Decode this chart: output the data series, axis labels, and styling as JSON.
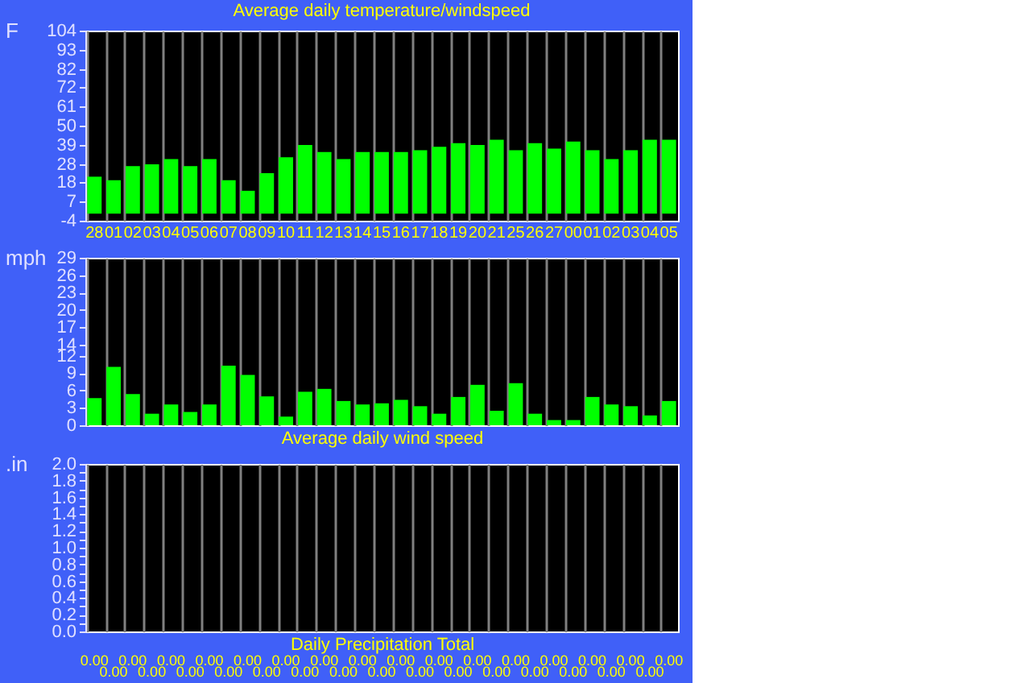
{
  "chart_data": [
    {
      "type": "bar",
      "title": "Average daily temperature/windspeed",
      "ylabel": "F",
      "categories": [
        "28",
        "01",
        "02",
        "03",
        "04",
        "05",
        "06",
        "07",
        "08",
        "09",
        "10",
        "11",
        "12",
        "13",
        "14",
        "15",
        "16",
        "17",
        "18",
        "19",
        "20",
        "21",
        "25",
        "26",
        "27",
        "00",
        "01",
        "02",
        "03",
        "04",
        "05"
      ],
      "series": [
        {
          "color": "#00ff00",
          "values": [
            21,
            19,
            27,
            28,
            31,
            27,
            31,
            19,
            13,
            23,
            32,
            39,
            35,
            31,
            35,
            35,
            35,
            36,
            38,
            40,
            39,
            42,
            36,
            40,
            37,
            41,
            36,
            31,
            36,
            42,
            42
          ]
        }
      ],
      "ylim": [
        -4,
        104
      ],
      "yticks": [
        -4,
        7,
        18,
        28,
        39,
        50,
        61,
        72,
        82,
        93,
        104
      ],
      "grid": "x",
      "legend": false
    },
    {
      "type": "bar",
      "xlabel": "Average daily wind speed",
      "ylabel": "mph",
      "categories": [
        "28",
        "01",
        "02",
        "03",
        "04",
        "05",
        "06",
        "07",
        "08",
        "09",
        "10",
        "11",
        "12",
        "13",
        "14",
        "15",
        "16",
        "17",
        "18",
        "19",
        "20",
        "21",
        "25",
        "26",
        "27",
        "00",
        "01",
        "02",
        "03",
        "04",
        "05"
      ],
      "series": [
        {
          "color": "#00ff00",
          "values": [
            4.7,
            10.1,
            5.4,
            2.0,
            3.6,
            2.3,
            3.6,
            10.3,
            8.7,
            5.0,
            1.5,
            5.8,
            6.3,
            4.2,
            3.6,
            3.8,
            4.4,
            3.3,
            2.0,
            4.9,
            7.0,
            2.5,
            7.3,
            2.0,
            0.9,
            0.9,
            4.9,
            3.6,
            3.3,
            1.7,
            4.2
          ]
        }
      ],
      "ylim": [
        0,
        29
      ],
      "yticks": [
        0,
        3,
        6,
        9,
        12,
        14,
        17,
        20,
        23,
        26,
        29
      ],
      "grid": "x",
      "legend": false,
      "tick_labels": "y"
    },
    {
      "type": "bar",
      "xlabel": "Daily Precipitation Total",
      "ylabel": ".in",
      "categories": [
        "28",
        "01",
        "02",
        "03",
        "04",
        "05",
        "06",
        "07",
        "08",
        "09",
        "10",
        "11",
        "12",
        "13",
        "14",
        "15",
        "16",
        "17",
        "18",
        "19",
        "20",
        "21",
        "25",
        "26",
        "27",
        "00",
        "01",
        "02",
        "03",
        "04",
        "05"
      ],
      "series": [
        {
          "color": "#00ff00",
          "values": [
            0,
            0,
            0,
            0,
            0,
            0,
            0,
            0,
            0,
            0,
            0,
            0,
            0,
            0,
            0,
            0,
            0,
            0,
            0,
            0,
            0,
            0,
            0,
            0,
            0,
            0,
            0,
            0,
            0,
            0,
            0
          ],
          "value_labels": [
            "0.00",
            "0.00",
            "0.00",
            "0.00",
            "0.00",
            "0.00",
            "0.00",
            "0.00",
            "0.00",
            "0.00",
            "0.00",
            "0.00",
            "0.00",
            "0.00",
            "0.00",
            "0.00",
            "0.00",
            "0.00",
            "0.00",
            "0.00",
            "0.00",
            "0.00",
            "0.00",
            "0.00",
            "0.00",
            "0.00",
            "0.00",
            "0.00",
            "0.00",
            "0.00",
            "0.00"
          ]
        }
      ],
      "ylim": [
        0,
        2.0
      ],
      "yticks": [
        {
          "value": 0,
          "label": "0.0"
        },
        {
          "value": 0.1,
          "label": null
        },
        0.2,
        {
          "value": 0.3,
          "label": null
        },
        0.4,
        {
          "value": 0.5,
          "label": null
        },
        0.6,
        {
          "value": 0.7,
          "label": null
        },
        0.8,
        {
          "value": 0.9,
          "label": null
        },
        {
          "value": 1,
          "label": "1.0"
        },
        {
          "value": 1.1,
          "label": null
        },
        1.2,
        {
          "value": 1.3,
          "label": null
        },
        1.4,
        {
          "value": 1.5,
          "label": null
        },
        1.6,
        {
          "value": 1.7,
          "label": null
        },
        1.8,
        {
          "value": 1.9,
          "label": null
        },
        {
          "value": 2,
          "label": "2.0"
        }
      ],
      "grid": "x",
      "legend": false,
      "tick_labels": "y"
    }
  ]
}
